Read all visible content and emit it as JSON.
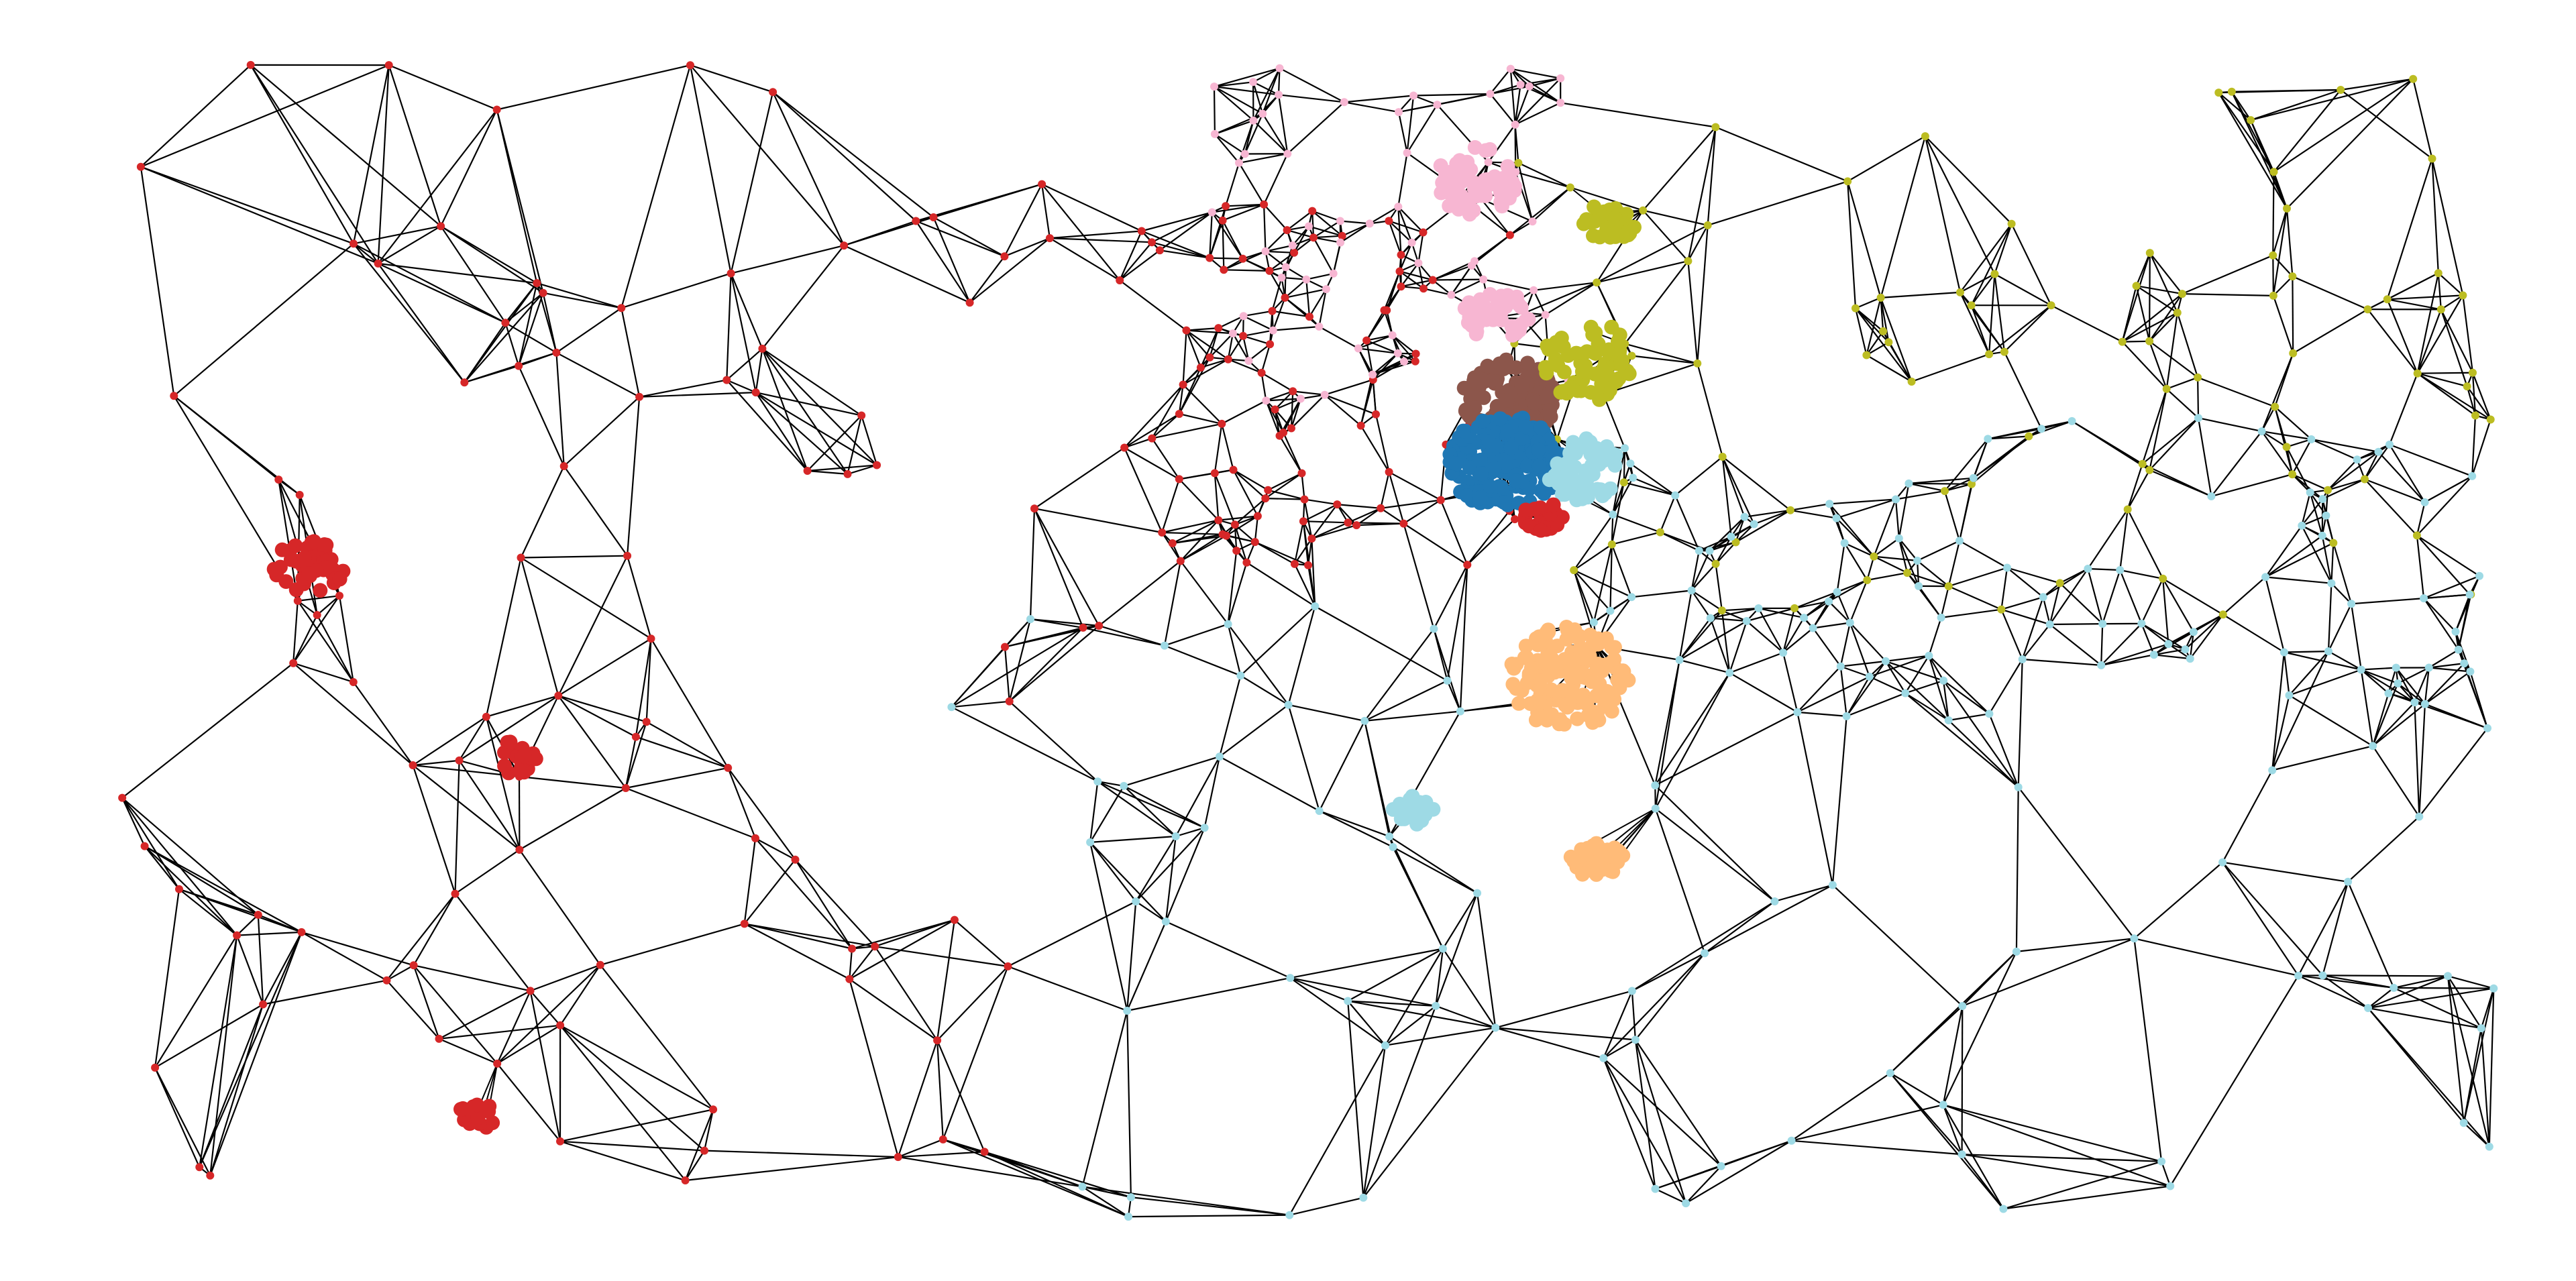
{
  "graph": {
    "type": "network",
    "description_free": true,
    "edge_color": "#000000",
    "background_color": "#ffffff",
    "communities": [
      {
        "id": "red",
        "color": "#d62728"
      },
      {
        "id": "pink",
        "color": "#f7b6d2"
      },
      {
        "id": "olive",
        "color": "#bcbd22"
      },
      {
        "id": "brown",
        "color": "#8c564b"
      },
      {
        "id": "blue",
        "color": "#1f77b4"
      },
      {
        "id": "lightblue",
        "color": "#9edae5"
      },
      {
        "id": "orange",
        "color": "#ffbb78"
      }
    ],
    "node_counts": {
      "red": 190,
      "pink": 70,
      "olive": 90,
      "lightblue": 170
    },
    "dense_clusters": [
      {
        "community": "brown",
        "count": 120
      },
      {
        "community": "blue",
        "count": 180
      },
      {
        "community": "orange",
        "count": 140
      },
      {
        "community": "pink",
        "count": 60
      },
      {
        "community": "olive",
        "count": 70
      },
      {
        "community": "lightblue",
        "count": 60
      }
    ]
  }
}
